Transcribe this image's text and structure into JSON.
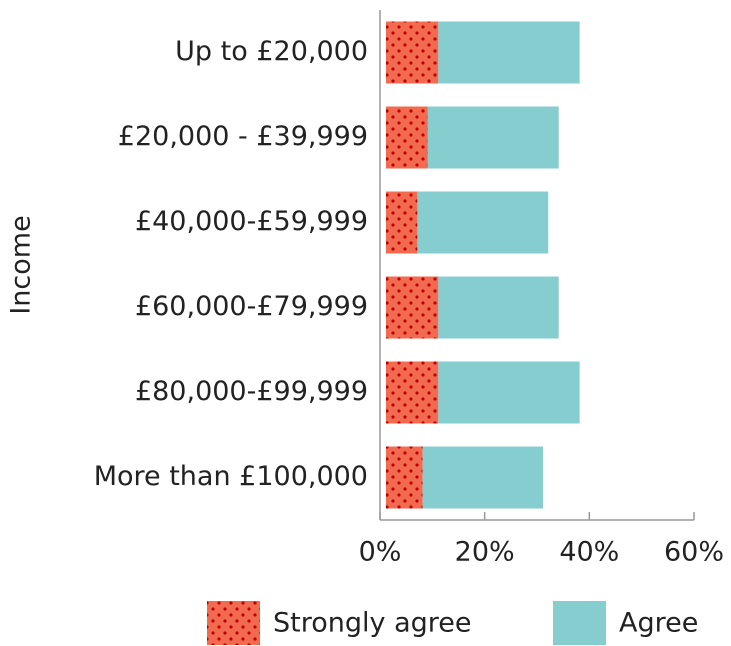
{
  "chart_data": {
    "type": "stacked_barh",
    "y_axis_label": "Income",
    "categories": [
      "Up to £20,000",
      "£20,000 - £39,999",
      "£40,000-£59,999",
      "£60,000-£79,999",
      "£80,000-£99,999",
      "More than £100,000"
    ],
    "series": [
      {
        "name": "Strongly agree",
        "color": "#f26b50",
        "pattern": "dots",
        "values": [
          10,
          8,
          6,
          10,
          10,
          7
        ]
      },
      {
        "name": "Agree",
        "color": "#86cdd0",
        "values": [
          27,
          25,
          25,
          23,
          27,
          23
        ]
      }
    ],
    "xlim": [
      0,
      60
    ],
    "xticks": [
      {
        "value": 0,
        "label": "0%"
      },
      {
        "value": 20,
        "label": "20%"
      },
      {
        "value": 40,
        "label": "40%"
      },
      {
        "value": 60,
        "label": "60%"
      }
    ],
    "legend": "bottom"
  }
}
